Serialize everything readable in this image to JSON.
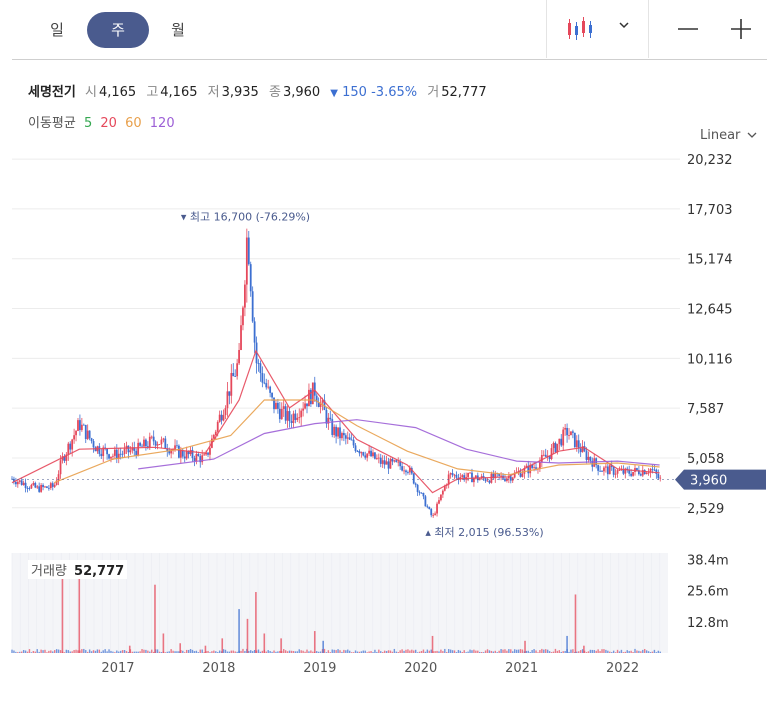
{
  "tabs": [
    {
      "label": "일",
      "active": false
    },
    {
      "label": "주",
      "active": true
    },
    {
      "label": "월",
      "active": false
    }
  ],
  "icons": {
    "chart_type": "candlestick-icon",
    "dropdown": "chevron-down-icon",
    "zoom_out": "minus-icon",
    "zoom_in": "plus-icon"
  },
  "stock": {
    "name": "세명전기",
    "open_label": "시",
    "open": "4,165",
    "high_label": "고",
    "high": "4,165",
    "low_label": "저",
    "low": "3,935",
    "close_label": "종",
    "close": "3,960",
    "change_arrow": "▼",
    "change": "150",
    "change_pct": "-3.65%",
    "volume_label": "거",
    "volume": "52,777"
  },
  "moving_avg": {
    "label": "이동평균",
    "periods": [
      {
        "value": "5",
        "color": "#36a852"
      },
      {
        "value": "20",
        "color": "#e5485b"
      },
      {
        "value": "60",
        "color": "#e8a04c"
      },
      {
        "value": "120",
        "color": "#9c5fd6"
      }
    ]
  },
  "scale_mode": "Linear",
  "colors": {
    "up": "#e5485b",
    "down": "#3c6fd1",
    "accent": "#4a5b8e"
  },
  "chart_data": {
    "type": "candlestick",
    "interval": "weekly",
    "y_axis": {
      "ticks": [
        "20,232",
        "17,703",
        "15,174",
        "12,645",
        "10,116",
        "7,587",
        "5,058",
        "2,529"
      ],
      "range": [
        1400,
        21200
      ]
    },
    "x_axis": {
      "ticks": [
        "2017",
        "2018",
        "2019",
        "2020",
        "2021",
        "2022"
      ],
      "range": [
        "2016-01",
        "2022-07"
      ]
    },
    "current_price": "3,960",
    "max_annotation": {
      "text": "최고 16,700 (-76.29%)",
      "date": "2018-05",
      "value": 16700
    },
    "min_annotation": {
      "text": "최저 2,015 (96.53%)",
      "date": "2020-03",
      "value": 2015
    },
    "price_path": [
      [
        "2016-01",
        4000
      ],
      [
        "2016-04",
        3500
      ],
      [
        "2016-06",
        3600
      ],
      [
        "2016-07",
        5000
      ],
      [
        "2016-09",
        6800
      ],
      [
        "2016-11",
        5600
      ],
      [
        "2017-01",
        5200
      ],
      [
        "2017-04",
        5500
      ],
      [
        "2017-06",
        6000
      ],
      [
        "2017-09",
        5300
      ],
      [
        "2017-12",
        5000
      ],
      [
        "2018-02",
        7500
      ],
      [
        "2018-04",
        10000
      ],
      [
        "2018-05",
        16700
      ],
      [
        "2018-06",
        10000
      ],
      [
        "2018-08",
        7800
      ],
      [
        "2018-10",
        7000
      ],
      [
        "2019-01",
        8500
      ],
      [
        "2019-03",
        6500
      ],
      [
        "2019-06",
        5600
      ],
      [
        "2019-09",
        4800
      ],
      [
        "2019-12",
        4600
      ],
      [
        "2020-03",
        2015
      ],
      [
        "2020-05",
        4200
      ],
      [
        "2020-09",
        4000
      ],
      [
        "2020-12",
        4100
      ],
      [
        "2021-03",
        4600
      ],
      [
        "2021-05",
        5300
      ],
      [
        "2021-07",
        6400
      ],
      [
        "2021-09",
        5300
      ],
      [
        "2021-11",
        4500
      ],
      [
        "2022-02",
        4300
      ],
      [
        "2022-05",
        4500
      ],
      [
        "2022-06",
        3960
      ]
    ],
    "moving_averages": [
      {
        "period": 20,
        "path": [
          [
            "2016-01",
            3800
          ],
          [
            "2016-09",
            5500
          ],
          [
            "2017-06",
            5600
          ],
          [
            "2017-12",
            5300
          ],
          [
            "2018-04",
            8000
          ],
          [
            "2018-06",
            10500
          ],
          [
            "2018-10",
            7600
          ],
          [
            "2019-01",
            8500
          ],
          [
            "2019-06",
            6000
          ],
          [
            "2019-12",
            4700
          ],
          [
            "2020-03",
            3300
          ],
          [
            "2020-06",
            4000
          ],
          [
            "2020-12",
            4100
          ],
          [
            "2021-06",
            5400
          ],
          [
            "2021-09",
            5600
          ],
          [
            "2022-01",
            4500
          ],
          [
            "2022-06",
            4300
          ]
        ]
      },
      {
        "period": 60,
        "path": [
          [
            "2016-06",
            3800
          ],
          [
            "2017-01",
            5000
          ],
          [
            "2017-09",
            5500
          ],
          [
            "2018-03",
            6200
          ],
          [
            "2018-07",
            8000
          ],
          [
            "2019-01",
            8000
          ],
          [
            "2019-06",
            6700
          ],
          [
            "2019-12",
            5400
          ],
          [
            "2020-06",
            4500
          ],
          [
            "2020-12",
            4200
          ],
          [
            "2021-06",
            4700
          ],
          [
            "2022-01",
            4800
          ],
          [
            "2022-06",
            4600
          ]
        ]
      },
      {
        "period": 120,
        "path": [
          [
            "2017-04",
            4500
          ],
          [
            "2018-01",
            5000
          ],
          [
            "2018-07",
            6300
          ],
          [
            "2019-01",
            6800
          ],
          [
            "2019-06",
            7000
          ],
          [
            "2020-01",
            6600
          ],
          [
            "2020-07",
            5500
          ],
          [
            "2021-01",
            4900
          ],
          [
            "2021-06",
            4800
          ],
          [
            "2022-01",
            4900
          ],
          [
            "2022-06",
            4700
          ]
        ]
      }
    ],
    "volume": {
      "label": "거래량",
      "value": "52,777",
      "y_ticks": [
        "38.4m",
        "25.6m",
        "12.8m"
      ],
      "y_max": 41,
      "spikes": [
        [
          "2016-07",
          34,
          "up"
        ],
        [
          "2016-09",
          34,
          "up"
        ],
        [
          "2017-03",
          3,
          "up"
        ],
        [
          "2017-06",
          28,
          "up"
        ],
        [
          "2017-07",
          8,
          "up"
        ],
        [
          "2017-09",
          4,
          "up"
        ],
        [
          "2017-12",
          3,
          "up"
        ],
        [
          "2018-02",
          6,
          "up"
        ],
        [
          "2018-04",
          18,
          "down"
        ],
        [
          "2018-05",
          14,
          "up"
        ],
        [
          "2018-06",
          25,
          "up"
        ],
        [
          "2018-07",
          8,
          "up"
        ],
        [
          "2018-09",
          6,
          "up"
        ],
        [
          "2019-01",
          9,
          "up"
        ],
        [
          "2019-02",
          5,
          "down"
        ],
        [
          "2020-03",
          7,
          "up"
        ],
        [
          "2021-02",
          5,
          "up"
        ],
        [
          "2021-07",
          7,
          "down"
        ],
        [
          "2021-08",
          24,
          "up"
        ],
        [
          "2021-09",
          3,
          "up"
        ]
      ]
    }
  }
}
